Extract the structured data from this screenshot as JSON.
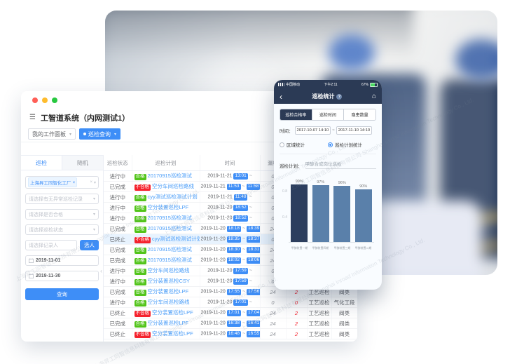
{
  "window": {
    "title": "工智道系统（内网测试1）",
    "workspace_tab": "我的工作面板",
    "active_tab": "巡检查询"
  },
  "sidebar": {
    "tabs": [
      "巡检",
      "随机"
    ],
    "factory_tag": "上海昇工同智化工厂",
    "selects": [
      "请选择有无异常巡检记录",
      "请选择是否合格",
      "请选择巡检状态"
    ],
    "recorder_placeholder": "请选择记录人",
    "pick_person_label": "选人",
    "date_start": "2019-11-01",
    "date_end": "2019-11-30",
    "search_label": "查询"
  },
  "table": {
    "headers": [
      "巡检状态",
      "巡检计划",
      "时间",
      "漏检",
      "异常",
      "巡检类型",
      "工段"
    ],
    "rows": [
      {
        "status": "进行中",
        "result": "合格",
        "plan": "20170915巡检测试",
        "date": "2019-11-21",
        "t1": "13:01",
        "t2": "",
        "n1": "0",
        "n2": "0",
        "type": "工艺巡检",
        "section": "阀类",
        "highlight": false
      },
      {
        "status": "已完成",
        "result": "不合格",
        "plan": "空分车间巡检路线",
        "date": "2019-11-21",
        "t1": "11:53",
        "t2": "11:58",
        "n1": "0",
        "n2": "2",
        "type": "工艺巡检",
        "section": "气化工段",
        "highlight": false
      },
      {
        "status": "进行中",
        "result": "合格",
        "plan": "cyy测试巡检测试计划",
        "date": "2019-11-21",
        "t1": "11:49",
        "t2": "",
        "n1": "0",
        "n2": "0",
        "type": "工艺巡检",
        "section": "阀类",
        "highlight": false
      },
      {
        "status": "进行中",
        "result": "合格",
        "plan": "空分装置巡检LPF",
        "date": "2019-11-20",
        "t1": "18:52",
        "t2": "",
        "n1": "0",
        "n2": "0",
        "type": "工艺巡检",
        "section": "阀类",
        "highlight": false
      },
      {
        "status": "进行中",
        "result": "合格",
        "plan": "20170915巡检测试",
        "date": "2019-11-20",
        "t1": "18:52",
        "t2": "",
        "n1": "0",
        "n2": "0",
        "type": "工艺巡检",
        "section": "阀类",
        "highlight": false
      },
      {
        "status": "已完成",
        "result": "合格",
        "plan": "20170915巡检测试",
        "date": "2019-11-20",
        "t1": "18:18",
        "t2": "18:39",
        "n1": "24",
        "n2": "0",
        "type": "工艺巡检",
        "section": "阀类",
        "highlight": false
      },
      {
        "status": "已终止",
        "result": "不合格",
        "plan": "cyy测试巡检测试计划",
        "date": "2019-11-20",
        "t1": "18:35",
        "t2": "18:37",
        "n1": "0",
        "n2": "2",
        "type": "工艺巡检",
        "section": "阀类",
        "highlight": true
      },
      {
        "status": "已完成",
        "result": "合格",
        "plan": "20170915巡检测试",
        "date": "2019-11-20",
        "t1": "18:30",
        "t2": "18:31",
        "n1": "24",
        "n2": "0",
        "type": "工艺巡检",
        "section": "阀类",
        "highlight": false
      },
      {
        "status": "已完成",
        "result": "合格",
        "plan": "20170915巡检测试",
        "date": "2019-11-20",
        "t1": "18:02",
        "t2": "18:06",
        "n1": "24",
        "n2": "0",
        "type": "工艺巡检",
        "section": "阀类",
        "highlight": false
      },
      {
        "status": "进行中",
        "result": "合格",
        "plan": "空分车间巡检路线",
        "date": "2019-11-20",
        "t1": "17:59",
        "t2": "",
        "n1": "0",
        "n2": "0",
        "type": "工艺巡检",
        "section": "气化工段",
        "highlight": false
      },
      {
        "status": "进行中",
        "result": "合格",
        "plan": "空分装置巡检CSY",
        "date": "2019-11-20",
        "t1": "17:59",
        "t2": "",
        "n1": "0",
        "n2": "0",
        "type": "工艺巡检",
        "section": "阀类",
        "highlight": false
      },
      {
        "status": "已完成",
        "result": "合格",
        "plan": "空分装置巡检LPF",
        "date": "2019-11-20",
        "t1": "17:55",
        "t2": "17:56",
        "n1": "24",
        "n2": "2",
        "type": "工艺巡检",
        "section": "阀类",
        "highlight": false
      },
      {
        "status": "进行中",
        "result": "合格",
        "plan": "空分车间巡检路线",
        "date": "2019-11-20",
        "t1": "17:01",
        "t2": "",
        "n1": "0",
        "n2": "0",
        "type": "工艺巡检",
        "section": "气化工段",
        "highlight": false
      },
      {
        "status": "已终止",
        "result": "不合格",
        "plan": "空分装置巡检LPF",
        "date": "2019-11-20",
        "t1": "17:01",
        "t2": "17:04",
        "n1": "24",
        "n2": "2",
        "type": "工艺巡检",
        "section": "阀类",
        "highlight": false
      },
      {
        "status": "已完成",
        "result": "合格",
        "plan": "空分装置巡检LPF",
        "date": "2019-11-20",
        "t1": "16:38",
        "t2": "16:41",
        "n1": "24",
        "n2": "2",
        "type": "工艺巡检",
        "section": "阀类",
        "highlight": false
      },
      {
        "status": "已终止",
        "result": "不合格",
        "plan": "空分装置巡检LPF",
        "date": "2019-11-20",
        "t1": "16:48",
        "t2": "16:55",
        "n1": "24",
        "n2": "2",
        "type": "工艺巡检",
        "section": "阀类",
        "highlight": false
      }
    ]
  },
  "phone": {
    "statusbar": {
      "carrier": "中国移动",
      "time": "下午2:11",
      "battery": "67%"
    },
    "nav": {
      "title": "巡检统计"
    },
    "segments": [
      "巡检合格率",
      "巡检时间",
      "隐患数量"
    ],
    "active_segment": 0,
    "time_label": "时间：",
    "time_from": "2017-10-07 14:10",
    "tilde": "~",
    "time_to": "2017-11-10 14:10",
    "radios": [
      {
        "label": "区域统计",
        "checked": false
      },
      {
        "label": "巡检计划统计",
        "checked": true
      }
    ],
    "plan_label": "巡检计划：",
    "plan_value": "甲醇合成岗位巡检"
  },
  "chart_data": {
    "type": "bar",
    "categories": [
      "甲醇装置一期",
      "甲醇装置四期",
      "甲醇装置三期",
      "甲醇装置二期"
    ],
    "values": [
      0.99,
      0.97,
      0.96,
      0.9
    ],
    "value_labels": [
      "99%",
      "97%",
      "96%",
      "90%"
    ],
    "title": "",
    "xlabel": "",
    "ylabel": "",
    "ylim": [
      0,
      1
    ],
    "yticks": [
      0.4,
      0.8
    ],
    "grid": false,
    "legend": false,
    "bar_colors": [
      "#2c3e5e",
      "#5a80aa",
      "#5a80aa",
      "#5a80aa"
    ]
  },
  "watermark": {
    "text": "上海昇工同智信息科技有限公司 Shanghai Inroad Information Technology Co., Ltd."
  },
  "colors": {
    "accent": "#3e8ef7",
    "pass_green": "#52c41a",
    "fail_red": "#f5222d",
    "navy": "#2b3a55",
    "bar_dark": "#2c3e5e",
    "bar_light": "#5a80aa"
  }
}
